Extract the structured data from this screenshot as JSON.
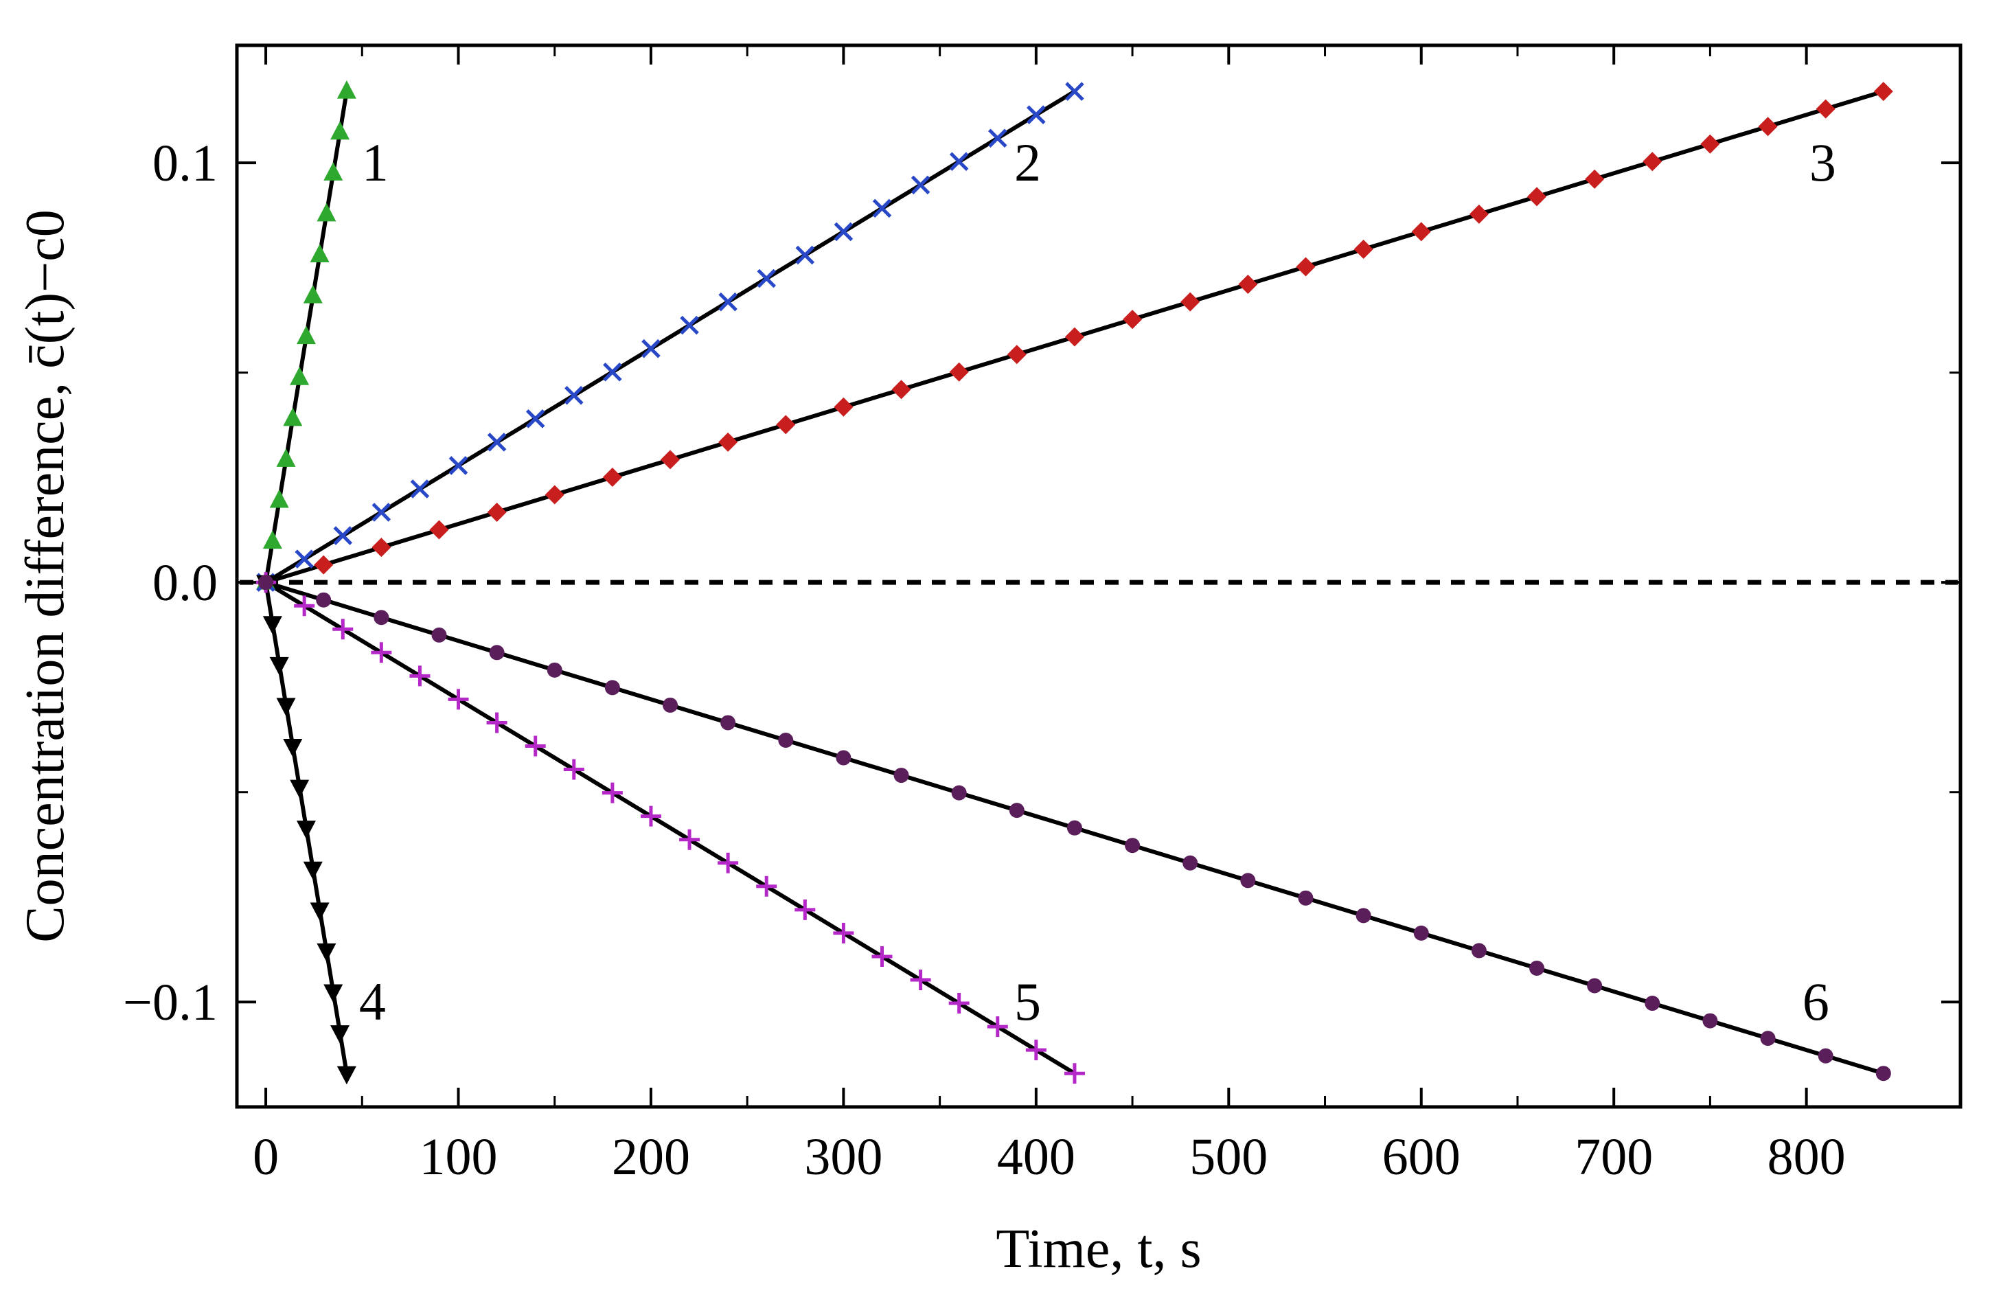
{
  "chart_data": {
    "type": "line",
    "xlabel": "Time, t, s",
    "ylabel": "Concentration difference, c̄(t)−c0",
    "xlim": [
      -15,
      880
    ],
    "ylim": [
      -0.125,
      0.128
    ],
    "x_ticks": [
      0,
      100,
      200,
      300,
      400,
      500,
      600,
      700,
      800
    ],
    "x_tick_labels": [
      "0",
      "100",
      "200",
      "300",
      "400",
      "500",
      "600",
      "700",
      "800"
    ],
    "y_ticks": [
      -0.1,
      0.0,
      0.1
    ],
    "y_tick_labels": [
      "−0.1",
      "0.0",
      "0.1"
    ],
    "reference_line": {
      "y": 0,
      "style": "dashed",
      "color": "#000000"
    },
    "series": [
      {
        "name": "1",
        "label": "1",
        "marker": "triangle-up",
        "color": "#2ea82e",
        "t_end": 42,
        "slope": 0.002786,
        "step": 3.5
      },
      {
        "name": "2",
        "label": "2",
        "marker": "x",
        "color": "#2848c8",
        "t_end": 420,
        "slope": 0.0002786,
        "step": 20
      },
      {
        "name": "3",
        "label": "3",
        "marker": "diamond",
        "color": "#c81e1e",
        "t_end": 840,
        "slope": 0.0001393,
        "step": 30
      },
      {
        "name": "4",
        "label": "4",
        "marker": "triangle-down",
        "color": "#000000",
        "t_end": 42,
        "slope": -0.002786,
        "step": 3.5
      },
      {
        "name": "5",
        "label": "5",
        "marker": "plus",
        "color": "#b428c8",
        "t_end": 420,
        "slope": -0.0002786,
        "step": 20
      },
      {
        "name": "6",
        "label": "6",
        "marker": "circle",
        "color": "#5a1e5a",
        "t_end": 840,
        "slope": -0.0001393,
        "step": 30
      }
    ]
  }
}
